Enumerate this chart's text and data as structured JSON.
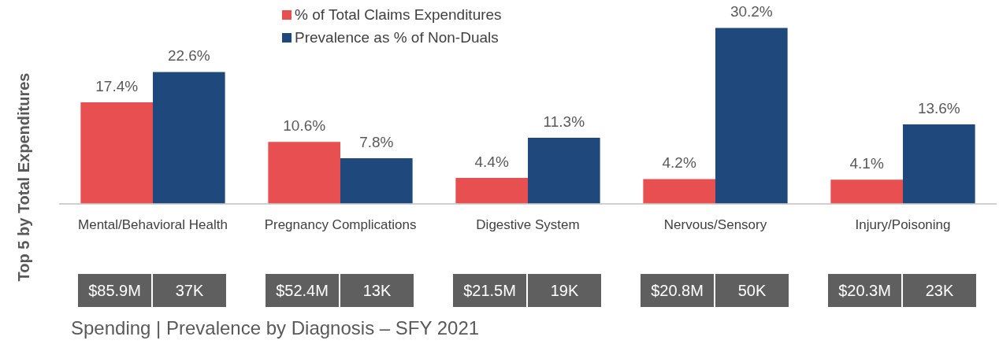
{
  "chart_data": {
    "type": "bar",
    "title": "Spending | Prevalence by Diagnosis – SFY 2021",
    "ylabel": "Top 5 by Total Expenditures",
    "categories": [
      "Mental/Behavioral Health",
      "Pregnancy Complications",
      "Digestive System",
      "Nervous/Sensory",
      "Injury/Poisoning"
    ],
    "series": [
      {
        "name": "% of Total Claims Expenditures",
        "color": "#e84f51",
        "values": [
          17.4,
          10.6,
          4.4,
          4.2,
          4.1
        ],
        "value_labels": [
          "17.4%",
          "10.6%",
          "4.4%",
          "4.2%",
          "4.1%"
        ]
      },
      {
        "name": "Prevalence as % of Non-Duals",
        "color": "#1f497d",
        "values": [
          22.6,
          7.8,
          11.3,
          30.2,
          13.6
        ],
        "value_labels": [
          "22.6%",
          "7.8%",
          "11.3%",
          "30.2%",
          "13.6%"
        ]
      }
    ],
    "annotations": [
      "$85.9M",
      "37K",
      "$52.4M",
      "13K",
      "$21.5M",
      "19K",
      "$20.8M",
      "50K",
      "$20.3M",
      "23K"
    ],
    "legend": "top",
    "grid": false
  }
}
